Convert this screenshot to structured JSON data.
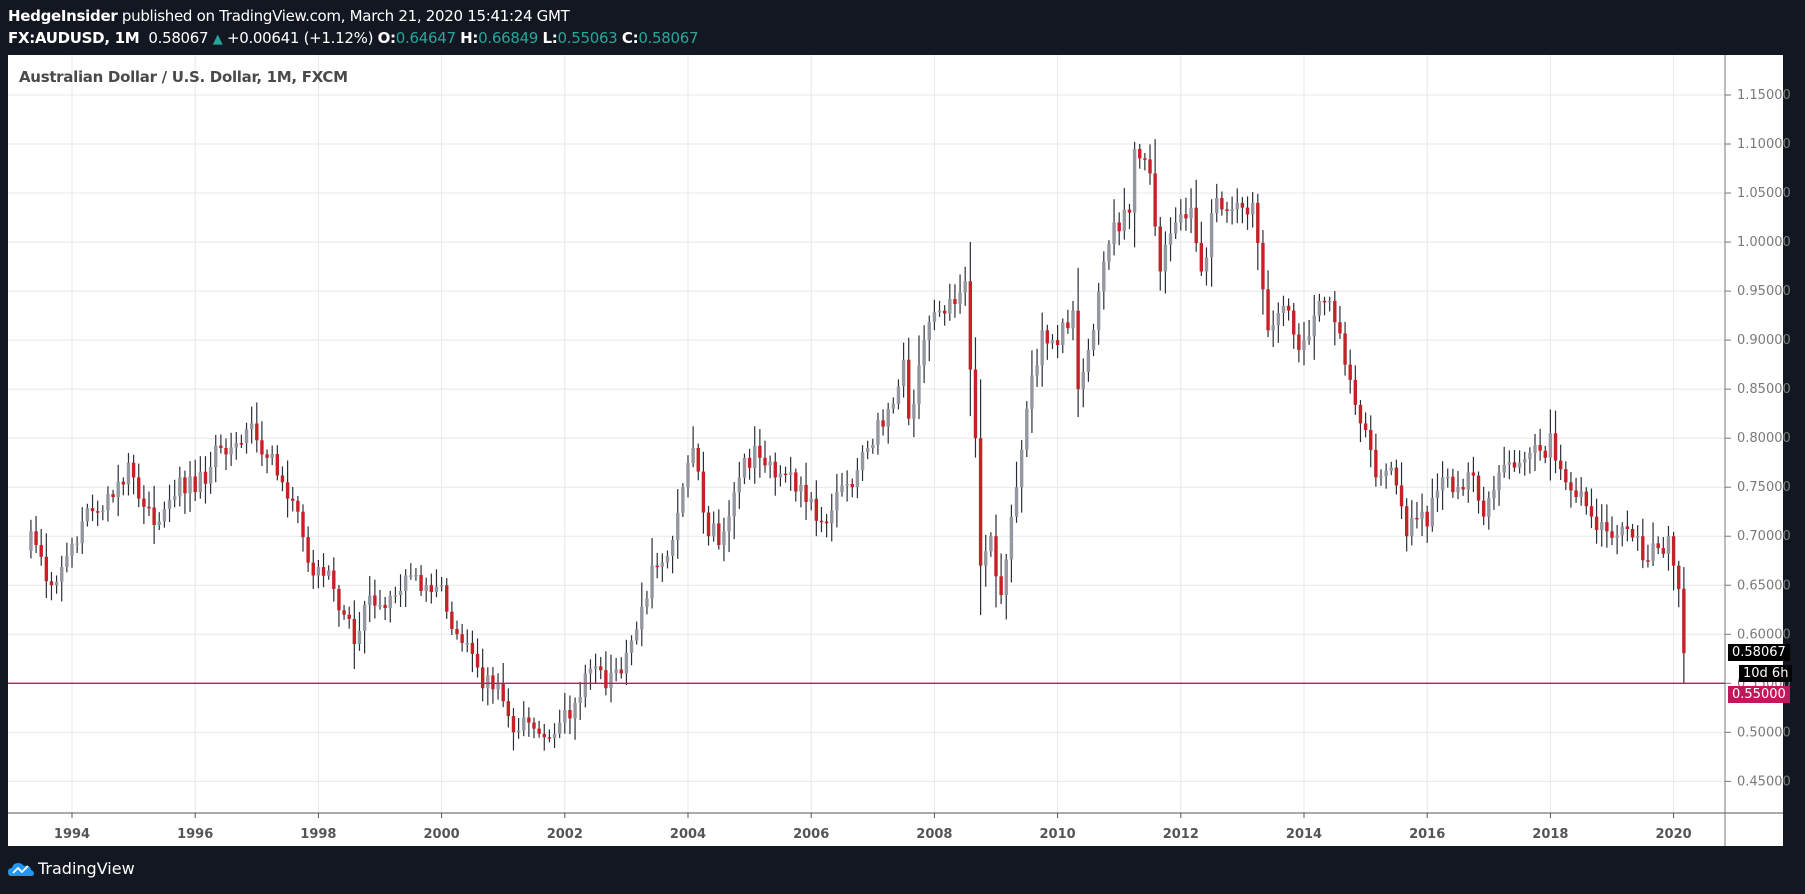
{
  "header": {
    "author": "HedgeInsider",
    "published_text": "published on TradingView.com, March 21, 2020 15:41:24 GMT",
    "symbol": "FX:AUDUSD, 1M",
    "last": "0.58067",
    "change_icon": "triangle-up-icon",
    "change": "+0.00641 (+1.12%)",
    "o_label": "O:",
    "o": "0.64647",
    "h_label": "H:",
    "h": "0.66849",
    "l_label": "L:",
    "l": "0.55063",
    "c_label": "C:",
    "c": "0.58067"
  },
  "chart_title": "Australian Dollar / U.S. Dollar, 1M, FXCM",
  "price_tags": {
    "last_price": "0.58067",
    "countdown": "10d 6h",
    "line_price": "0.55000"
  },
  "footer": {
    "brand": "TradingView",
    "logo_icon": "tradingview-cloud-icon"
  },
  "colors": {
    "background": "#131722",
    "up_candle": "#9598a1",
    "down_candle": "#c62127",
    "wick": "#2a2e39",
    "hline": "#c2185b",
    "teal": "#26a69a",
    "grid": "#e8e8ea"
  },
  "chart_data": {
    "type": "candlestick",
    "title": "Australian Dollar / U.S. Dollar, 1M, FXCM",
    "symbol": "FX:AUDUSD",
    "interval": "1M",
    "xlabel": "",
    "ylabel": "",
    "ylim": [
      0.42,
      1.17
    ],
    "y_ticks": [
      "1.15000",
      "1.10000",
      "1.05000",
      "1.00000",
      "0.95000",
      "0.90000",
      "0.85000",
      "0.80000",
      "0.75000",
      "0.70000",
      "0.65000",
      "0.60000",
      "0.55000",
      "0.50000",
      "0.45000"
    ],
    "x_ticks": [
      "1994",
      "1996",
      "1998",
      "2000",
      "2002",
      "2004",
      "2006",
      "2008",
      "2010",
      "2012",
      "2014",
      "2016",
      "2018",
      "2020"
    ],
    "grid": true,
    "horizontal_line": 0.55,
    "start": "1993-05",
    "anchor_points": [
      [
        "1993-05",
        0.705
      ],
      [
        "1993-09",
        0.65
      ],
      [
        "1993-12",
        0.68
      ],
      [
        "1994-03",
        0.715
      ],
      [
        "1994-09",
        0.74
      ],
      [
        "1994-12",
        0.775
      ],
      [
        "1995-03",
        0.73
      ],
      [
        "1995-06",
        0.715
      ],
      [
        "1995-10",
        0.76
      ],
      [
        "1996-01",
        0.745
      ],
      [
        "1996-06",
        0.79
      ],
      [
        "1996-10",
        0.795
      ],
      [
        "1996-12",
        0.815
      ],
      [
        "1997-03",
        0.78
      ],
      [
        "1997-06",
        0.755
      ],
      [
        "1997-09",
        0.725
      ],
      [
        "1997-12",
        0.66
      ],
      [
        "1998-03",
        0.665
      ],
      [
        "1998-06",
        0.62
      ],
      [
        "1998-08",
        0.59
      ],
      [
        "1998-10",
        0.63
      ],
      [
        "1999-01",
        0.63
      ],
      [
        "1999-04",
        0.64
      ],
      [
        "1999-07",
        0.66
      ],
      [
        "1999-10",
        0.65
      ],
      [
        "2000-01",
        0.65
      ],
      [
        "2000-04",
        0.6
      ],
      [
        "2000-07",
        0.58
      ],
      [
        "2000-09",
        0.545
      ],
      [
        "2000-12",
        0.55
      ],
      [
        "2001-03",
        0.5
      ],
      [
        "2001-06",
        0.51
      ],
      [
        "2001-09",
        0.495
      ],
      [
        "2001-12",
        0.51
      ],
      [
        "2002-03",
        0.53
      ],
      [
        "2002-06",
        0.565
      ],
      [
        "2002-09",
        0.545
      ],
      [
        "2002-12",
        0.56
      ],
      [
        "2003-03",
        0.605
      ],
      [
        "2003-06",
        0.67
      ],
      [
        "2003-09",
        0.68
      ],
      [
        "2003-12",
        0.75
      ],
      [
        "2004-02",
        0.79
      ],
      [
        "2004-05",
        0.7
      ],
      [
        "2004-08",
        0.705
      ],
      [
        "2004-12",
        0.78
      ],
      [
        "2005-03",
        0.78
      ],
      [
        "2005-06",
        0.76
      ],
      [
        "2005-09",
        0.765
      ],
      [
        "2005-12",
        0.735
      ],
      [
        "2006-03",
        0.715
      ],
      [
        "2006-06",
        0.745
      ],
      [
        "2006-09",
        0.75
      ],
      [
        "2006-12",
        0.79
      ],
      [
        "2007-04",
        0.83
      ],
      [
        "2007-07",
        0.88
      ],
      [
        "2007-08",
        0.82
      ],
      [
        "2007-11",
        0.9
      ],
      [
        "2008-02",
        0.93
      ],
      [
        "2008-07",
        0.96
      ],
      [
        "2008-08",
        0.87
      ],
      [
        "2008-09",
        0.8
      ],
      [
        "2008-10",
        0.67
      ],
      [
        "2008-12",
        0.7
      ],
      [
        "2009-02",
        0.64
      ],
      [
        "2009-04",
        0.72
      ],
      [
        "2009-07",
        0.83
      ],
      [
        "2009-10",
        0.91
      ],
      [
        "2009-12",
        0.9
      ],
      [
        "2010-04",
        0.93
      ],
      [
        "2010-05",
        0.85
      ],
      [
        "2010-07",
        0.89
      ],
      [
        "2010-10",
        0.98
      ],
      [
        "2010-12",
        1.02
      ],
      [
        "2011-03",
        1.03
      ],
      [
        "2011-04",
        1.095
      ],
      [
        "2011-07",
        1.07
      ],
      [
        "2011-09",
        0.97
      ],
      [
        "2011-12",
        1.02
      ],
      [
        "2012-03",
        1.035
      ],
      [
        "2012-05",
        0.97
      ],
      [
        "2012-08",
        1.045
      ],
      [
        "2012-12",
        1.04
      ],
      [
        "2013-03",
        1.04
      ],
      [
        "2013-06",
        0.91
      ],
      [
        "2013-09",
        0.935
      ],
      [
        "2013-12",
        0.89
      ],
      [
        "2014-03",
        0.925
      ],
      [
        "2014-06",
        0.94
      ],
      [
        "2014-09",
        0.875
      ],
      [
        "2014-12",
        0.815
      ],
      [
        "2015-03",
        0.76
      ],
      [
        "2015-06",
        0.77
      ],
      [
        "2015-09",
        0.7
      ],
      [
        "2015-12",
        0.725
      ],
      [
        "2016-01",
        0.71
      ],
      [
        "2016-04",
        0.76
      ],
      [
        "2016-06",
        0.745
      ],
      [
        "2016-09",
        0.765
      ],
      [
        "2016-12",
        0.72
      ],
      [
        "2017-03",
        0.765
      ],
      [
        "2017-06",
        0.77
      ],
      [
        "2017-09",
        0.785
      ],
      [
        "2017-12",
        0.78
      ],
      [
        "2018-01",
        0.805
      ],
      [
        "2018-04",
        0.755
      ],
      [
        "2018-06",
        0.74
      ],
      [
        "2018-09",
        0.72
      ],
      [
        "2018-12",
        0.705
      ],
      [
        "2019-03",
        0.71
      ],
      [
        "2019-06",
        0.7
      ],
      [
        "2019-08",
        0.675
      ],
      [
        "2019-12",
        0.7
      ],
      [
        "2020-01",
        0.67
      ],
      [
        "2020-02",
        0.646
      ],
      [
        "2020-03",
        0.581
      ]
    ],
    "last_bar": {
      "date": "2020-03",
      "open": 0.64647,
      "high": 0.66849,
      "low": 0.55063,
      "close": 0.58067
    }
  }
}
